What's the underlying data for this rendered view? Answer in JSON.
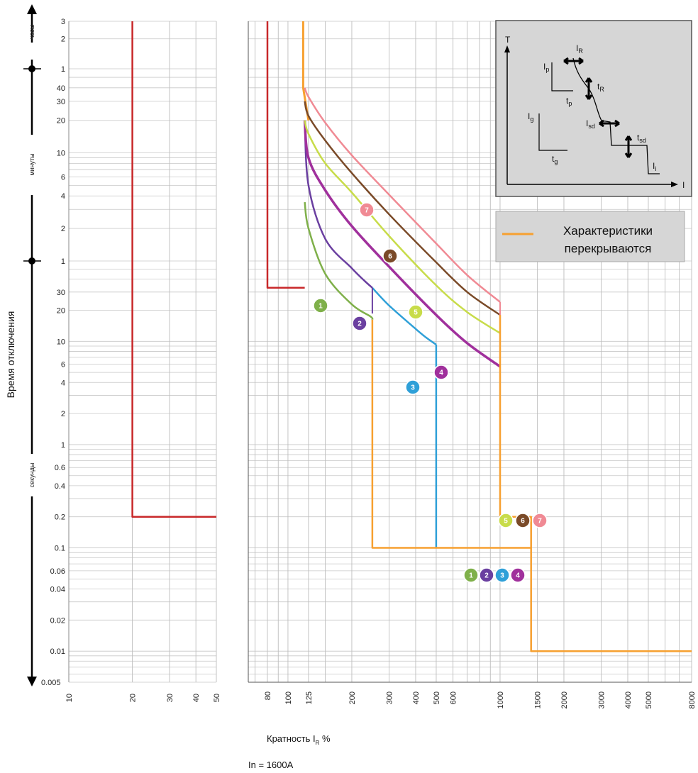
{
  "chart_data": {
    "type": "line",
    "ylabel": "Время отключения",
    "xlabel": "Кратность I",
    "xlabel_sub": "R",
    "xlabel_suffix": " %",
    "nominal": "In = 1600A",
    "y_scale": "log",
    "y_ticks_seconds": [
      {
        "v": 0.005,
        "label": "0.005"
      },
      {
        "v": 0.01,
        "label": "0.01"
      },
      {
        "v": 0.02,
        "label": "0.02"
      },
      {
        "v": 0.04,
        "label": "0.04"
      },
      {
        "v": 0.06,
        "label": "0.06"
      },
      {
        "v": 0.1,
        "label": "0.1"
      },
      {
        "v": 0.2,
        "label": "0.2"
      },
      {
        "v": 0.4,
        "label": "0.4"
      },
      {
        "v": 0.6,
        "label": "0.6"
      },
      {
        "v": 1,
        "label": "1"
      },
      {
        "v": 2,
        "label": "2"
      },
      {
        "v": 4,
        "label": "4"
      },
      {
        "v": 6,
        "label": "6"
      },
      {
        "v": 10,
        "label": "10"
      },
      {
        "v": 20,
        "label": "20"
      },
      {
        "v": 30,
        "label": "30"
      }
    ],
    "y_ticks_minutes": [
      {
        "v": 1,
        "label": "1"
      },
      {
        "v": 2,
        "label": "2"
      },
      {
        "v": 4,
        "label": "4"
      },
      {
        "v": 6,
        "label": "6"
      },
      {
        "v": 10,
        "label": "10"
      },
      {
        "v": 20,
        "label": "20"
      },
      {
        "v": 30,
        "label": "30"
      },
      {
        "v": 40,
        "label": "40"
      }
    ],
    "y_ticks_hours": [
      {
        "v": 1,
        "label": "1"
      },
      {
        "v": 2,
        "label": "2"
      },
      {
        "v": 3,
        "label": "3"
      }
    ],
    "time_bands": [
      "часы",
      "минуты",
      "секунды"
    ],
    "left_x_ticks": [
      "10",
      "20",
      "30",
      "40",
      "50"
    ],
    "x_ticks": [
      "80",
      "100",
      "125",
      "200",
      "300",
      "400",
      "500",
      "600",
      "1000",
      "1500",
      "2000",
      "3000",
      "4000",
      "5000",
      "8000"
    ],
    "legend": {
      "label": "Характеристики перекрываются",
      "line1": "Характеристики",
      "line2": "перекрываются",
      "color": "#f7a030"
    },
    "inset": {
      "axis_y": "T",
      "axis_x": "I",
      "labels": {
        "Ip": "I",
        "Ip_sub": "p",
        "tp": "t",
        "tp_sub": "p",
        "Ig": "I",
        "Ig_sub": "g",
        "tg": "t",
        "tg_sub": "g",
        "IR": "I",
        "IR_sub": "R",
        "tR": "t",
        "tR_sub": "R",
        "Isd": "I",
        "Isd_sub": "sd",
        "tsd": "t",
        "tsd_sub": "sd",
        "Ii": "I",
        "Ii_sub": "i"
      }
    },
    "series": [
      {
        "name": "1",
        "color": "#7fb04a",
        "points": [
          [
            120,
            3.5
          ],
          [
            125,
            2
          ],
          [
            150,
            0.75
          ],
          [
            200,
            0.38
          ],
          [
            245,
            0.29
          ],
          [
            250,
            0.27
          ]
        ]
      },
      {
        "name": "2",
        "color": "#6a3fa0",
        "points": [
          [
            120,
            20
          ],
          [
            125,
            5
          ],
          [
            150,
            1.6
          ],
          [
            200,
            0.85
          ],
          [
            230,
            0.64
          ],
          [
            250,
            0.55
          ]
        ]
      },
      {
        "name": "3",
        "color": "#2fa0d8",
        "points": [
          [
            250,
            0.55
          ],
          [
            300,
            0.37
          ],
          [
            400,
            0.22
          ],
          [
            450,
            0.18
          ],
          [
            500,
            0.155
          ]
        ]
      },
      {
        "name": "4",
        "color": "#a0309c",
        "points": [
          [
            120,
            20
          ],
          [
            125,
            9
          ],
          [
            150,
            4.5
          ],
          [
            200,
            2.1
          ],
          [
            300,
            0.88
          ],
          [
            500,
            0.3
          ],
          [
            700,
            0.16
          ],
          [
            1000,
            0.095
          ]
        ]
      },
      {
        "name": "5",
        "color": "#c8dc4a",
        "points": [
          [
            120,
            20
          ],
          [
            125,
            15
          ],
          [
            150,
            8
          ],
          [
            200,
            4.3
          ],
          [
            300,
            1.7
          ],
          [
            500,
            0.58
          ],
          [
            700,
            0.32
          ],
          [
            1000,
            0.2
          ]
        ]
      },
      {
        "name": "6",
        "color": "#7a4a28",
        "points": [
          [
            120,
            30
          ],
          [
            125,
            22
          ],
          [
            150,
            13
          ],
          [
            200,
            6.5
          ],
          [
            300,
            2.7
          ],
          [
            500,
            0.97
          ],
          [
            700,
            0.5
          ],
          [
            1000,
            0.3
          ]
        ]
      },
      {
        "name": "7",
        "color": "#f08a94",
        "points": [
          [
            120,
            40
          ],
          [
            125,
            33
          ],
          [
            150,
            19
          ],
          [
            200,
            9.5
          ],
          [
            300,
            4.1
          ],
          [
            500,
            1.45
          ],
          [
            700,
            0.73
          ],
          [
            1000,
            0.4
          ]
        ]
      }
    ],
    "steps_orange": [
      [
        120,
        3
      ],
      [
        120,
        40
      ],
      [
        125,
        20
      ]
    ],
    "step_orange_1234": [
      [
        250,
        0.27
      ],
      [
        250,
        0.1
      ],
      [
        1400,
        0.1
      ],
      [
        1400,
        0.01
      ],
      [
        8000,
        0.01
      ]
    ],
    "step_orange_567": [
      [
        1000,
        0.2
      ],
      [
        1400,
        0.2
      ],
      [
        1400,
        0.1
      ]
    ],
    "red_main": [
      [
        80,
        10800
      ],
      [
        80,
        0.55
      ],
      [
        120,
        0.55
      ]
    ],
    "red_left": [
      [
        20,
        10800
      ],
      [
        20,
        0.2
      ],
      [
        50,
        0.2
      ]
    ],
    "marker_groups": {
      "a": [
        "5",
        "6",
        "7"
      ],
      "b": [
        "1",
        "2",
        "3",
        "4"
      ]
    }
  }
}
